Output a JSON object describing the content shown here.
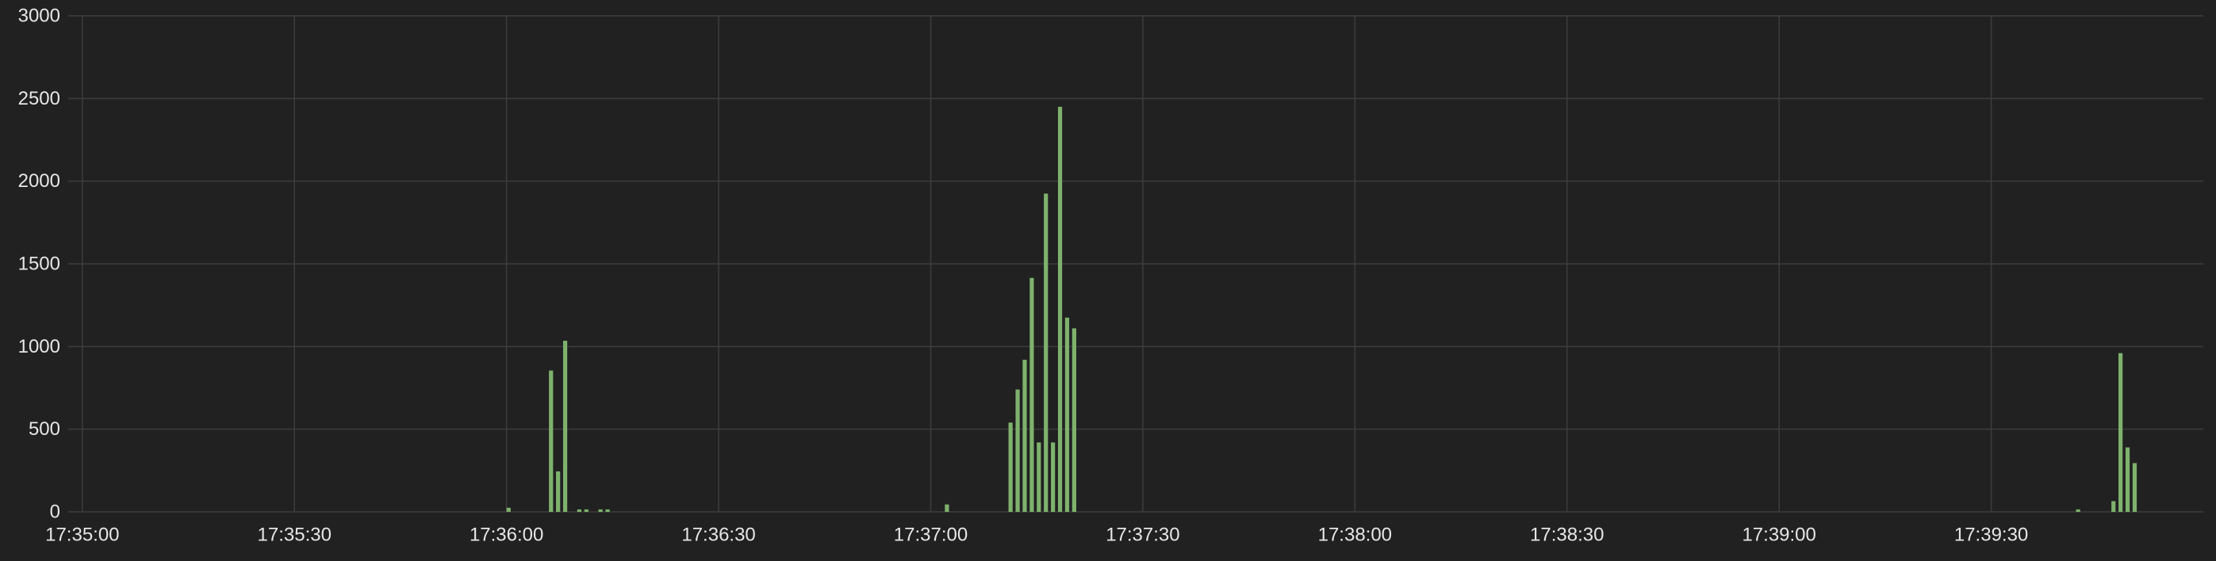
{
  "chart_data": {
    "type": "bar",
    "title": "",
    "xlabel": "",
    "ylabel": "",
    "x_axis": {
      "type": "time",
      "range": [
        "17:34:58",
        "17:40:00"
      ],
      "ticks": [
        "17:35:00",
        "17:35:30",
        "17:36:00",
        "17:36:30",
        "17:37:00",
        "17:37:30",
        "17:38:00",
        "17:38:30",
        "17:39:00",
        "17:39:30"
      ]
    },
    "y_axis": {
      "range": [
        0,
        3000
      ],
      "ticks": [
        "0",
        "500",
        "1000",
        "1500",
        "2000",
        "2500",
        "3000"
      ]
    },
    "bar_interval_seconds": 1,
    "grid": true,
    "legend": "none",
    "colors": {
      "background": "#212121",
      "bar": "#7eb26d",
      "grid": "#3d3d3d",
      "axis_text": "#e6e6e6"
    },
    "series": [
      {
        "points": [
          {
            "t": "17:36:00",
            "v": 25
          },
          {
            "t": "17:36:06",
            "v": 855
          },
          {
            "t": "17:36:07",
            "v": 245
          },
          {
            "t": "17:36:08",
            "v": 1035
          },
          {
            "t": "17:36:10",
            "v": 15
          },
          {
            "t": "17:36:11",
            "v": 15
          },
          {
            "t": "17:36:13",
            "v": 15
          },
          {
            "t": "17:36:14",
            "v": 15
          },
          {
            "t": "17:37:02",
            "v": 45
          },
          {
            "t": "17:37:11",
            "v": 540
          },
          {
            "t": "17:37:12",
            "v": 740
          },
          {
            "t": "17:37:13",
            "v": 920
          },
          {
            "t": "17:37:14",
            "v": 1415
          },
          {
            "t": "17:37:15",
            "v": 420
          },
          {
            "t": "17:37:16",
            "v": 1925
          },
          {
            "t": "17:37:17",
            "v": 420
          },
          {
            "t": "17:37:18",
            "v": 2450
          },
          {
            "t": "17:37:19",
            "v": 1175
          },
          {
            "t": "17:37:20",
            "v": 1110
          },
          {
            "t": "17:39:42",
            "v": 15
          },
          {
            "t": "17:39:47",
            "v": 65
          },
          {
            "t": "17:39:48",
            "v": 960
          },
          {
            "t": "17:39:49",
            "v": 390
          },
          {
            "t": "17:39:50",
            "v": 295
          }
        ]
      }
    ]
  }
}
